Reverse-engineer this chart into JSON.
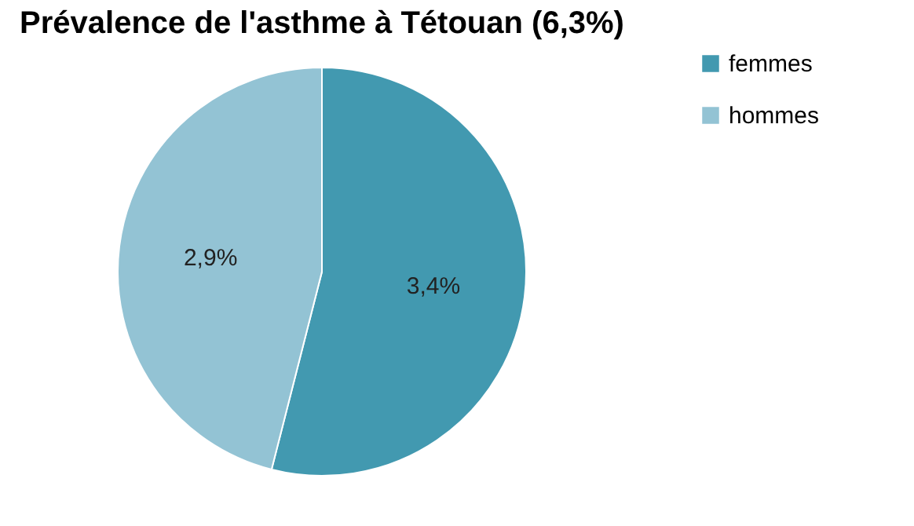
{
  "chart_data": {
    "type": "pie",
    "title": "Prévalence de l'asthme à Tétouan (6,3%)",
    "categories": [
      "femmes",
      "hommes"
    ],
    "values": [
      3.4,
      2.9
    ],
    "colors": [
      "#4299b0",
      "#93c3d4"
    ],
    "value_labels": [
      "3,4%",
      "2,9%"
    ],
    "legend": "right"
  }
}
